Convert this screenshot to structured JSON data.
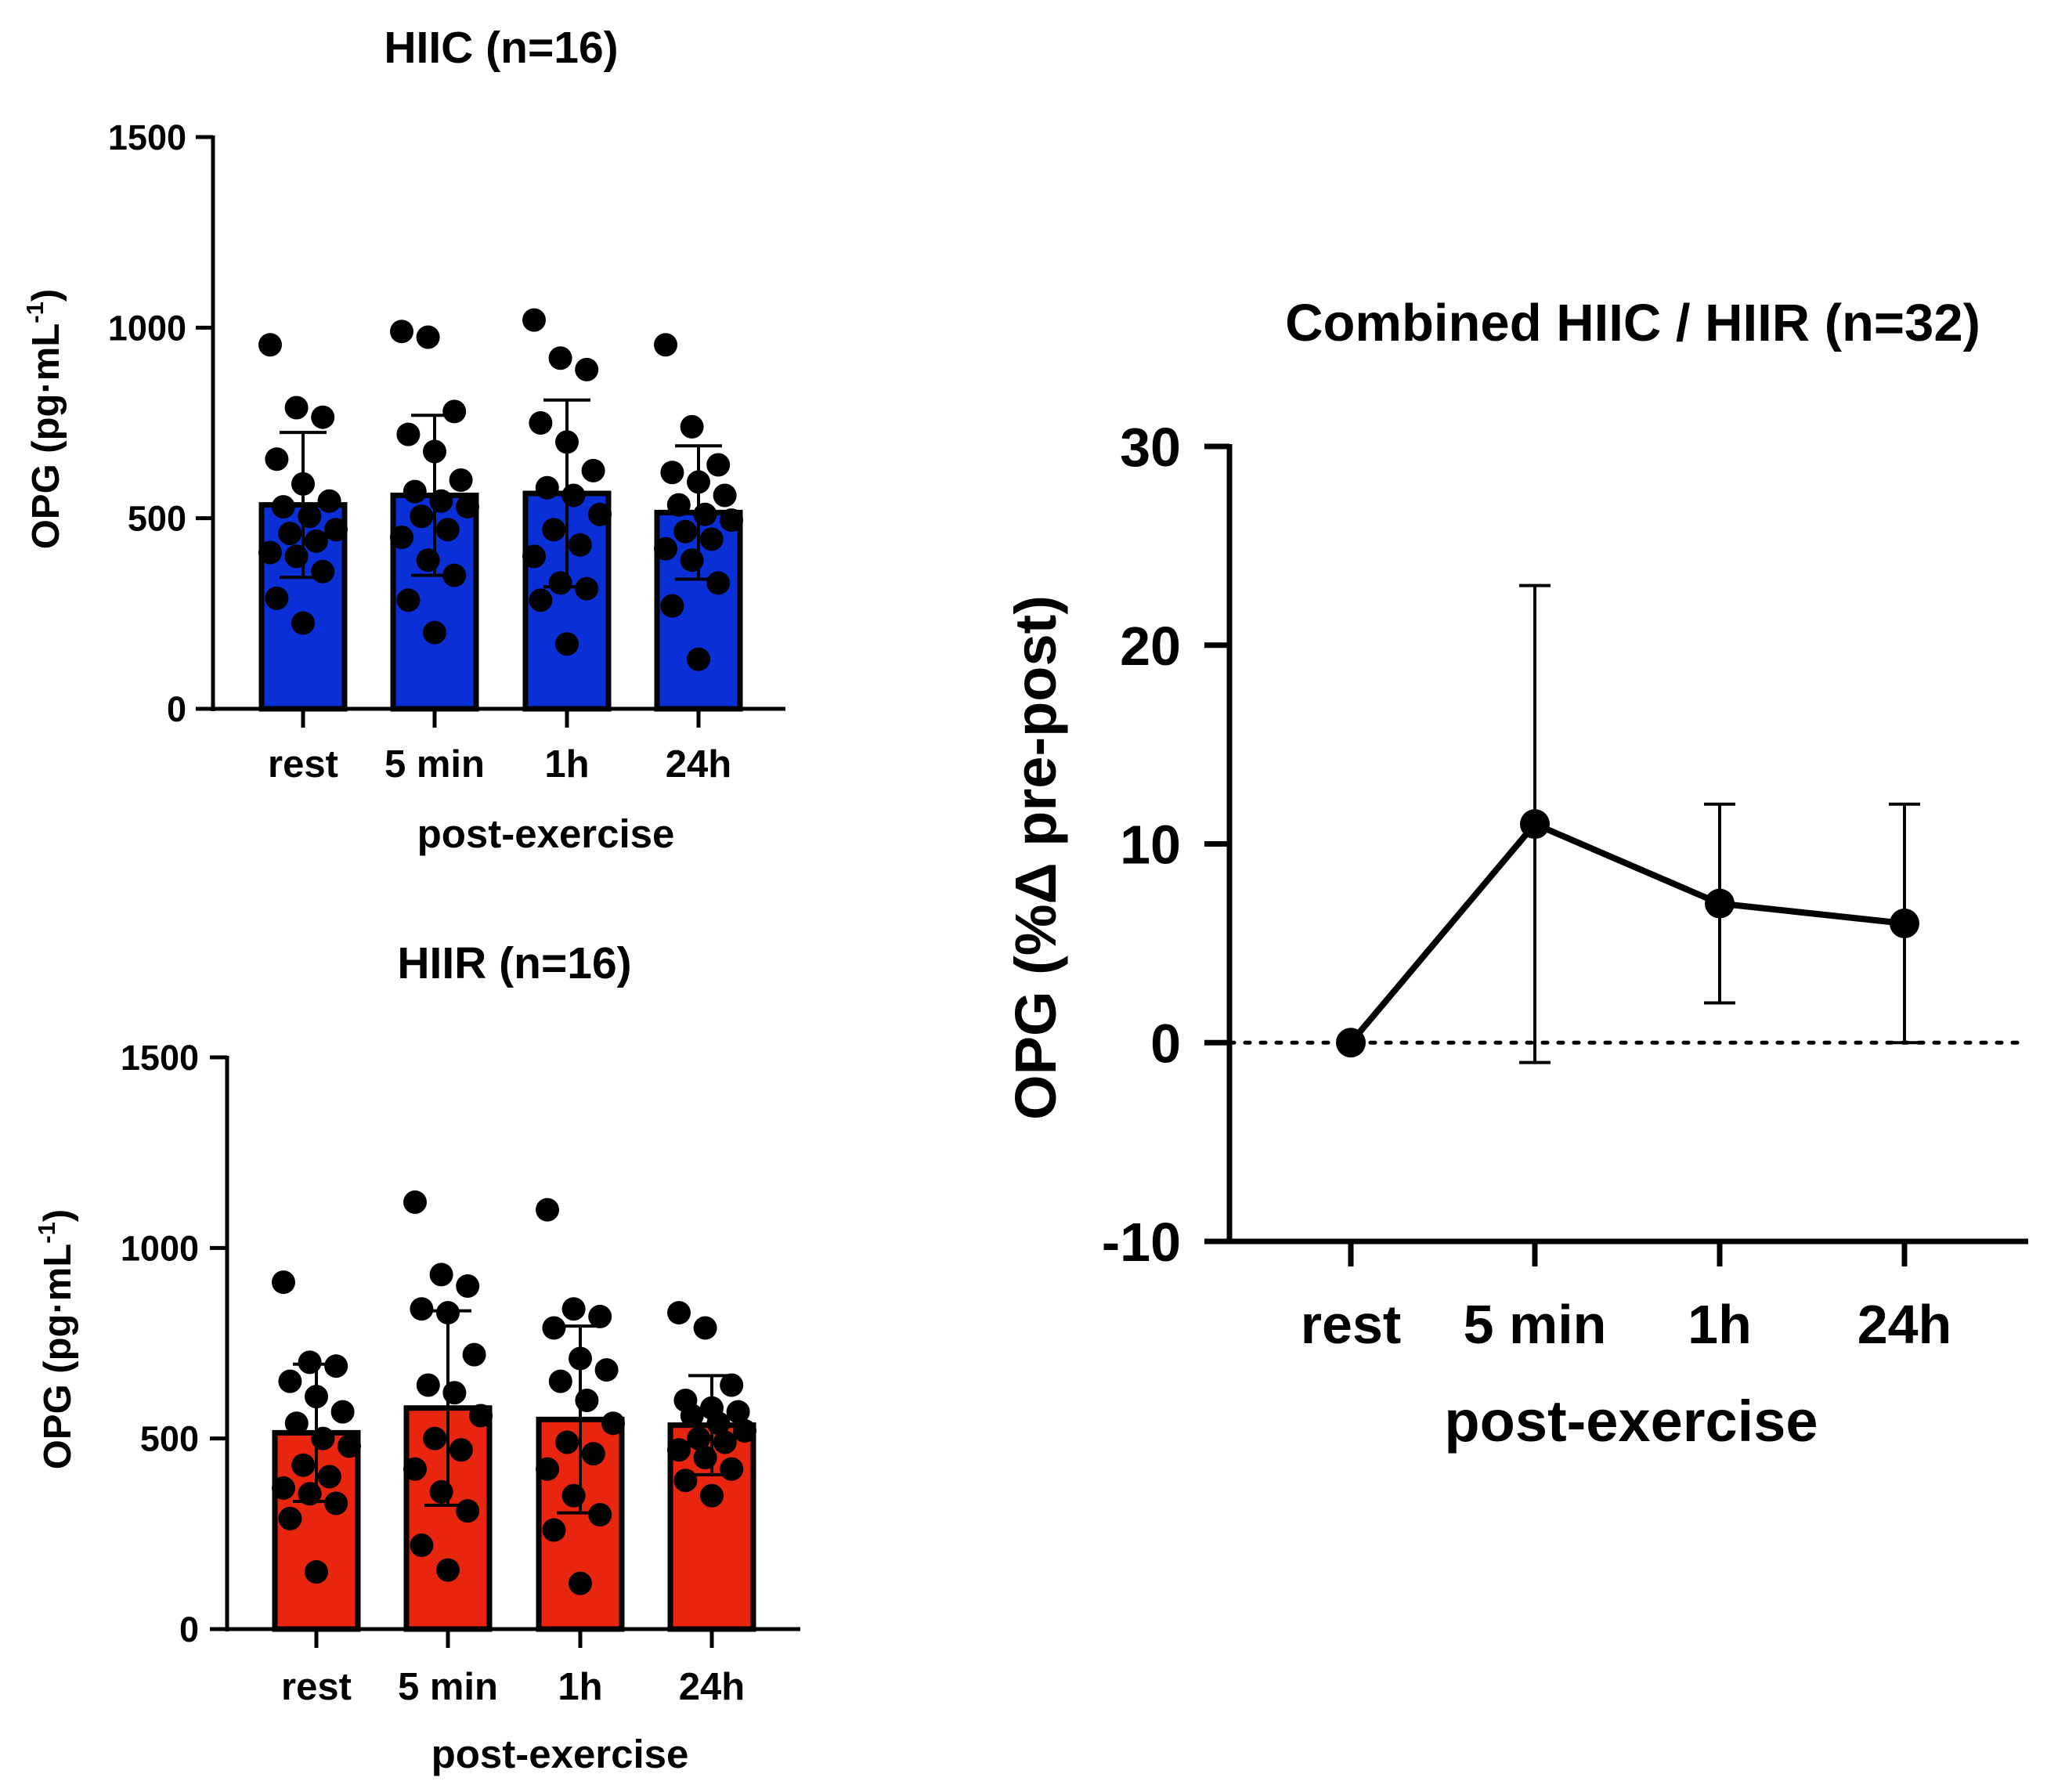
{
  "colors": {
    "hiic": "#0b2fd6",
    "hiir": "#e8250e",
    "axis": "#000000",
    "point": "#000000"
  },
  "chart_data": [
    {
      "id": "hiic",
      "type": "bar",
      "title": "HIIC (n=16)",
      "xlabel": "post-exercise",
      "ylabel_main": "OPG (pg·mL",
      "ylabel_sup": "-1",
      "ylabel_close": ")",
      "ylim": [
        0,
        1500
      ],
      "yticks": [
        0,
        500,
        1000,
        1500
      ],
      "categories": [
        "rest",
        "5 min",
        "1h",
        "24h"
      ],
      "values": [
        535,
        560,
        565,
        515
      ],
      "sd": [
        190,
        210,
        245,
        175
      ],
      "points": [
        [
          955,
          790,
          765,
          655,
          590,
          545,
          530,
          505,
          470,
          460,
          440,
          410,
          400,
          360,
          290,
          225
        ],
        [
          990,
          975,
          780,
          720,
          675,
          600,
          570,
          545,
          530,
          505,
          470,
          450,
          390,
          350,
          285,
          200
        ],
        [
          1020,
          920,
          890,
          750,
          700,
          625,
          580,
          560,
          510,
          470,
          430,
          400,
          330,
          315,
          285,
          170
        ],
        [
          955,
          740,
          640,
          620,
          595,
          560,
          535,
          510,
          495,
          465,
          445,
          420,
          390,
          330,
          270,
          130
        ]
      ]
    },
    {
      "id": "hiir",
      "type": "bar",
      "title": "HIIR (n=16)",
      "xlabel": "post-exercise",
      "ylabel_main": "OPG (pg·mL",
      "ylabel_sup": "-1",
      "ylabel_close": ")",
      "ylim": [
        0,
        1500
      ],
      "yticks": [
        0,
        500,
        1000,
        1500
      ],
      "categories": [
        "rest",
        "5 min",
        "1h",
        "24h"
      ],
      "values": [
        515,
        580,
        550,
        535
      ],
      "sd": [
        180,
        255,
        245,
        130
      ],
      "points": [
        [
          910,
          700,
          690,
          650,
          610,
          570,
          540,
          500,
          480,
          430,
          400,
          370,
          355,
          330,
          290,
          150
        ],
        [
          1120,
          930,
          900,
          840,
          830,
          720,
          640,
          620,
          560,
          500,
          470,
          420,
          360,
          310,
          220,
          155
        ],
        [
          1100,
          840,
          820,
          790,
          710,
          680,
          650,
          600,
          540,
          490,
          460,
          420,
          350,
          300,
          260,
          120
        ],
        [
          830,
          790,
          640,
          600,
          580,
          570,
          560,
          540,
          520,
          500,
          490,
          470,
          450,
          420,
          390,
          350
        ]
      ]
    },
    {
      "id": "combined",
      "type": "line",
      "title": "Combined HIIC / HIIR (n=32)",
      "xlabel": "post-exercise",
      "ylabel": "OPG (%Δ pre-post)",
      "ylim": [
        -10,
        30
      ],
      "yticks": [
        -10,
        0,
        10,
        20,
        30
      ],
      "categories": [
        "rest",
        "5 min",
        "1h",
        "24h"
      ],
      "values": [
        0,
        11,
        7,
        6
      ],
      "err_low": [
        0,
        -1,
        2,
        0
      ],
      "err_high": [
        0,
        23,
        12,
        12
      ],
      "reference_line": 0
    }
  ]
}
